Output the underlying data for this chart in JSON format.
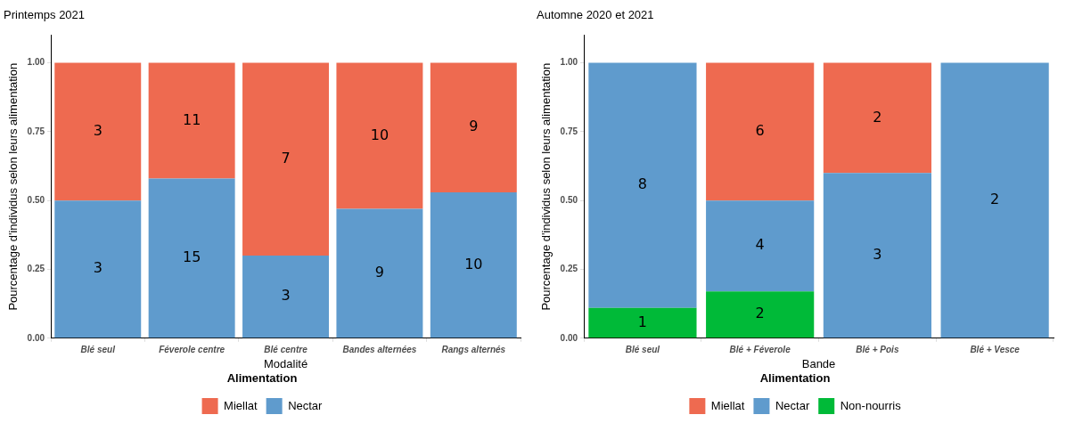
{
  "chart_data": [
    {
      "type": "bar",
      "stacked": true,
      "title": "Printemps 2021",
      "xlabel": "Modalité",
      "ylabel": "Pourcentage d'individus selon leurs alimentation",
      "legend": "bottom",
      "legend_title": "Alimentation",
      "grid": false,
      "categories": [
        "Blé seul",
        "Féverole centre",
        "Blé centre",
        "Bandes alternées",
        "Rangs alternés"
      ],
      "ylim": [
        0,
        1.1
      ],
      "yticks": [
        {
          "value": 0,
          "label": "0.00"
        },
        {
          "value": 0.25,
          "label": "0.25"
        },
        {
          "value": 0.5,
          "label": "0.50"
        },
        {
          "value": 0.75,
          "label": "0.75"
        },
        {
          "value": 1,
          "label": "1.00"
        }
      ],
      "series": [
        {
          "name": "Nectar",
          "color": "#5f9bcd",
          "values": [
            0.5,
            0.58,
            0.3,
            0.47,
            0.53
          ]
        },
        {
          "name": "Miellat",
          "color": "#ee6a50",
          "values": [
            0.5,
            0.42,
            0.7,
            0.53,
            0.47
          ]
        }
      ],
      "annotations": [
        "3",
        "15",
        "3",
        "9",
        "10",
        "3",
        "11",
        "7",
        "10",
        "9"
      ]
    },
    {
      "type": "bar",
      "stacked": true,
      "title": "Automne 2020 et 2021",
      "xlabel": "Bande",
      "ylabel": "Pourcentage d'individus selon leurs alimentation",
      "legend": "bottom",
      "legend_title": "Alimentation",
      "grid": false,
      "categories": [
        "Blé seul",
        "Blé + Féverole",
        "Blé + Pois",
        "Blé + Vesce"
      ],
      "ylim": [
        0,
        1.1
      ],
      "yticks": [
        {
          "value": 0,
          "label": "0.00"
        },
        {
          "value": 0.25,
          "label": "0.25"
        },
        {
          "value": 0.5,
          "label": "0.50"
        },
        {
          "value": 0.75,
          "label": "0.75"
        },
        {
          "value": 1,
          "label": "1.00"
        }
      ],
      "series": [
        {
          "name": "Non-nourris",
          "color": "#00ba38",
          "values": [
            0.11,
            0.17,
            0,
            0
          ]
        },
        {
          "name": "Nectar",
          "color": "#5f9bcd",
          "values": [
            0.89,
            0.33,
            0.6,
            1
          ]
        },
        {
          "name": "Miellat",
          "color": "#ee6a50",
          "values": [
            0,
            0.5,
            0.4,
            0
          ]
        }
      ],
      "annotations": [
        "1",
        "2",
        "8",
        "4",
        "3",
        "2",
        "6",
        "2"
      ]
    }
  ]
}
